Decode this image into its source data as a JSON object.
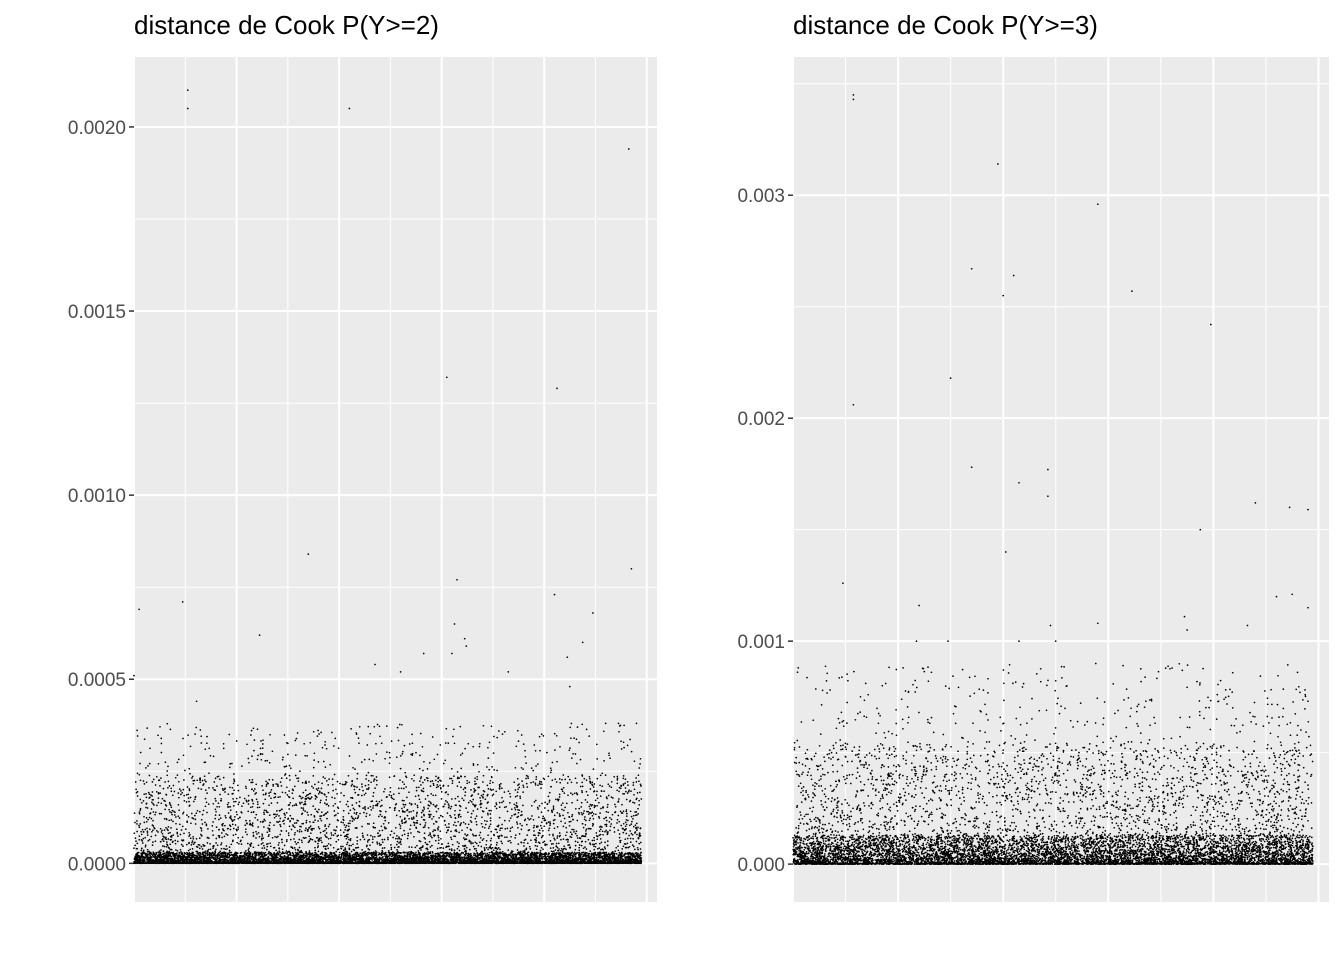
{
  "chart_data": [
    {
      "type": "scatter",
      "title": "distance de Cook P(Y>=2)",
      "xlabel": "",
      "ylabel": "",
      "x_tick_labels_shown": false,
      "xlim": [
        0,
        10200
      ],
      "ylim": [
        -0.000105,
        0.00219
      ],
      "y_ticks": [
        0,
        0.0005,
        0.001,
        0.0015,
        0.002
      ],
      "y_tick_labels": [
        "0.0000",
        "0.0005",
        "0.0010",
        "0.0015",
        "0.0020"
      ],
      "grid": true,
      "background": "#ebebeb",
      "point_color": "#000000",
      "n_observations_approx": 10000,
      "bulk": {
        "dense_band": [
          0,
          3e-05
        ],
        "scatter_band": [
          0,
          0.00024
        ],
        "sparse_band": [
          0.00024,
          0.00038
        ]
      },
      "highlighted_points": [
        {
          "x": 0,
          "y": 0.00051
        },
        {
          "x": 100,
          "y": 0.00069
        },
        {
          "x": 1050,
          "y": 0.0021
        },
        {
          "x": 1050,
          "y": 0.00205
        },
        {
          "x": 950,
          "y": 0.00071
        },
        {
          "x": 1220,
          "y": 0.00044
        },
        {
          "x": 2450,
          "y": 0.00062
        },
        {
          "x": 3400,
          "y": 0.00084
        },
        {
          "x": 4200,
          "y": 0.00205
        },
        {
          "x": 4700,
          "y": 0.00054
        },
        {
          "x": 5200,
          "y": 0.00052
        },
        {
          "x": 5650,
          "y": 0.00057
        },
        {
          "x": 6100,
          "y": 0.00132
        },
        {
          "x": 6300,
          "y": 0.00077
        },
        {
          "x": 6250,
          "y": 0.00065
        },
        {
          "x": 6450,
          "y": 0.00061
        },
        {
          "x": 6480,
          "y": 0.00059
        },
        {
          "x": 6200,
          "y": 0.00057
        },
        {
          "x": 7300,
          "y": 0.00052
        },
        {
          "x": 8200,
          "y": 0.00073
        },
        {
          "x": 8250,
          "y": 0.00129
        },
        {
          "x": 8450,
          "y": 0.00056
        },
        {
          "x": 8500,
          "y": 0.00048
        },
        {
          "x": 8750,
          "y": 0.0006
        },
        {
          "x": 8950,
          "y": 0.00068
        },
        {
          "x": 9650,
          "y": 0.00194
        },
        {
          "x": 9700,
          "y": 0.0008
        },
        {
          "x": 9200,
          "y": 0.00038
        },
        {
          "x": 9450,
          "y": 0.00038
        },
        {
          "x": 9800,
          "y": 0.00038
        },
        {
          "x": 9850,
          "y": 0.00017
        }
      ]
    },
    {
      "type": "scatter",
      "title": "distance de Cook P(Y>=3)",
      "xlabel": "",
      "ylabel": "",
      "x_tick_labels_shown": false,
      "xlim": [
        0,
        10200
      ],
      "ylim": [
        -0.00017,
        0.00362
      ],
      "y_ticks": [
        0,
        0.001,
        0.002,
        0.003
      ],
      "y_tick_labels": [
        "0.000",
        "0.001",
        "0.002",
        "0.003"
      ],
      "grid": true,
      "background": "#ebebeb",
      "point_color": "#000000",
      "n_observations_approx": 10000,
      "bulk": {
        "dense_band": [
          0,
          0.00013
        ],
        "scatter_band": [
          0,
          0.00055
        ],
        "sparse_band": [
          0.00055,
          0.0009
        ]
      },
      "highlighted_points": [
        {
          "x": 100,
          "y": 0.00088
        },
        {
          "x": 950,
          "y": 0.00126
        },
        {
          "x": 1150,
          "y": 0.00345
        },
        {
          "x": 1150,
          "y": 0.00343
        },
        {
          "x": 1150,
          "y": 0.00206
        },
        {
          "x": 2350,
          "y": 0.001
        },
        {
          "x": 2400,
          "y": 0.00116
        },
        {
          "x": 2950,
          "y": 0.001
        },
        {
          "x": 3000,
          "y": 0.00218
        },
        {
          "x": 3400,
          "y": 0.00267
        },
        {
          "x": 3400,
          "y": 0.00178
        },
        {
          "x": 3900,
          "y": 0.00314
        },
        {
          "x": 4000,
          "y": 0.00255
        },
        {
          "x": 4050,
          "y": 0.0014
        },
        {
          "x": 4200,
          "y": 0.00264
        },
        {
          "x": 4300,
          "y": 0.00171
        },
        {
          "x": 4300,
          "y": 0.001
        },
        {
          "x": 4850,
          "y": 0.00177
        },
        {
          "x": 4850,
          "y": 0.00165
        },
        {
          "x": 4900,
          "y": 0.00107
        },
        {
          "x": 5000,
          "y": 0.001
        },
        {
          "x": 5800,
          "y": 0.00296
        },
        {
          "x": 5800,
          "y": 0.00108
        },
        {
          "x": 6450,
          "y": 0.00257
        },
        {
          "x": 7450,
          "y": 0.00111
        },
        {
          "x": 7500,
          "y": 0.00105
        },
        {
          "x": 7750,
          "y": 0.0015
        },
        {
          "x": 7950,
          "y": 0.00242
        },
        {
          "x": 8650,
          "y": 0.00107
        },
        {
          "x": 8800,
          "y": 0.00162
        },
        {
          "x": 9200,
          "y": 0.0012
        },
        {
          "x": 9450,
          "y": 0.0016
        },
        {
          "x": 9500,
          "y": 0.00121
        },
        {
          "x": 9600,
          "y": 0.00086
        },
        {
          "x": 9800,
          "y": 0.00159
        },
        {
          "x": 9800,
          "y": 0.00115
        }
      ]
    }
  ]
}
